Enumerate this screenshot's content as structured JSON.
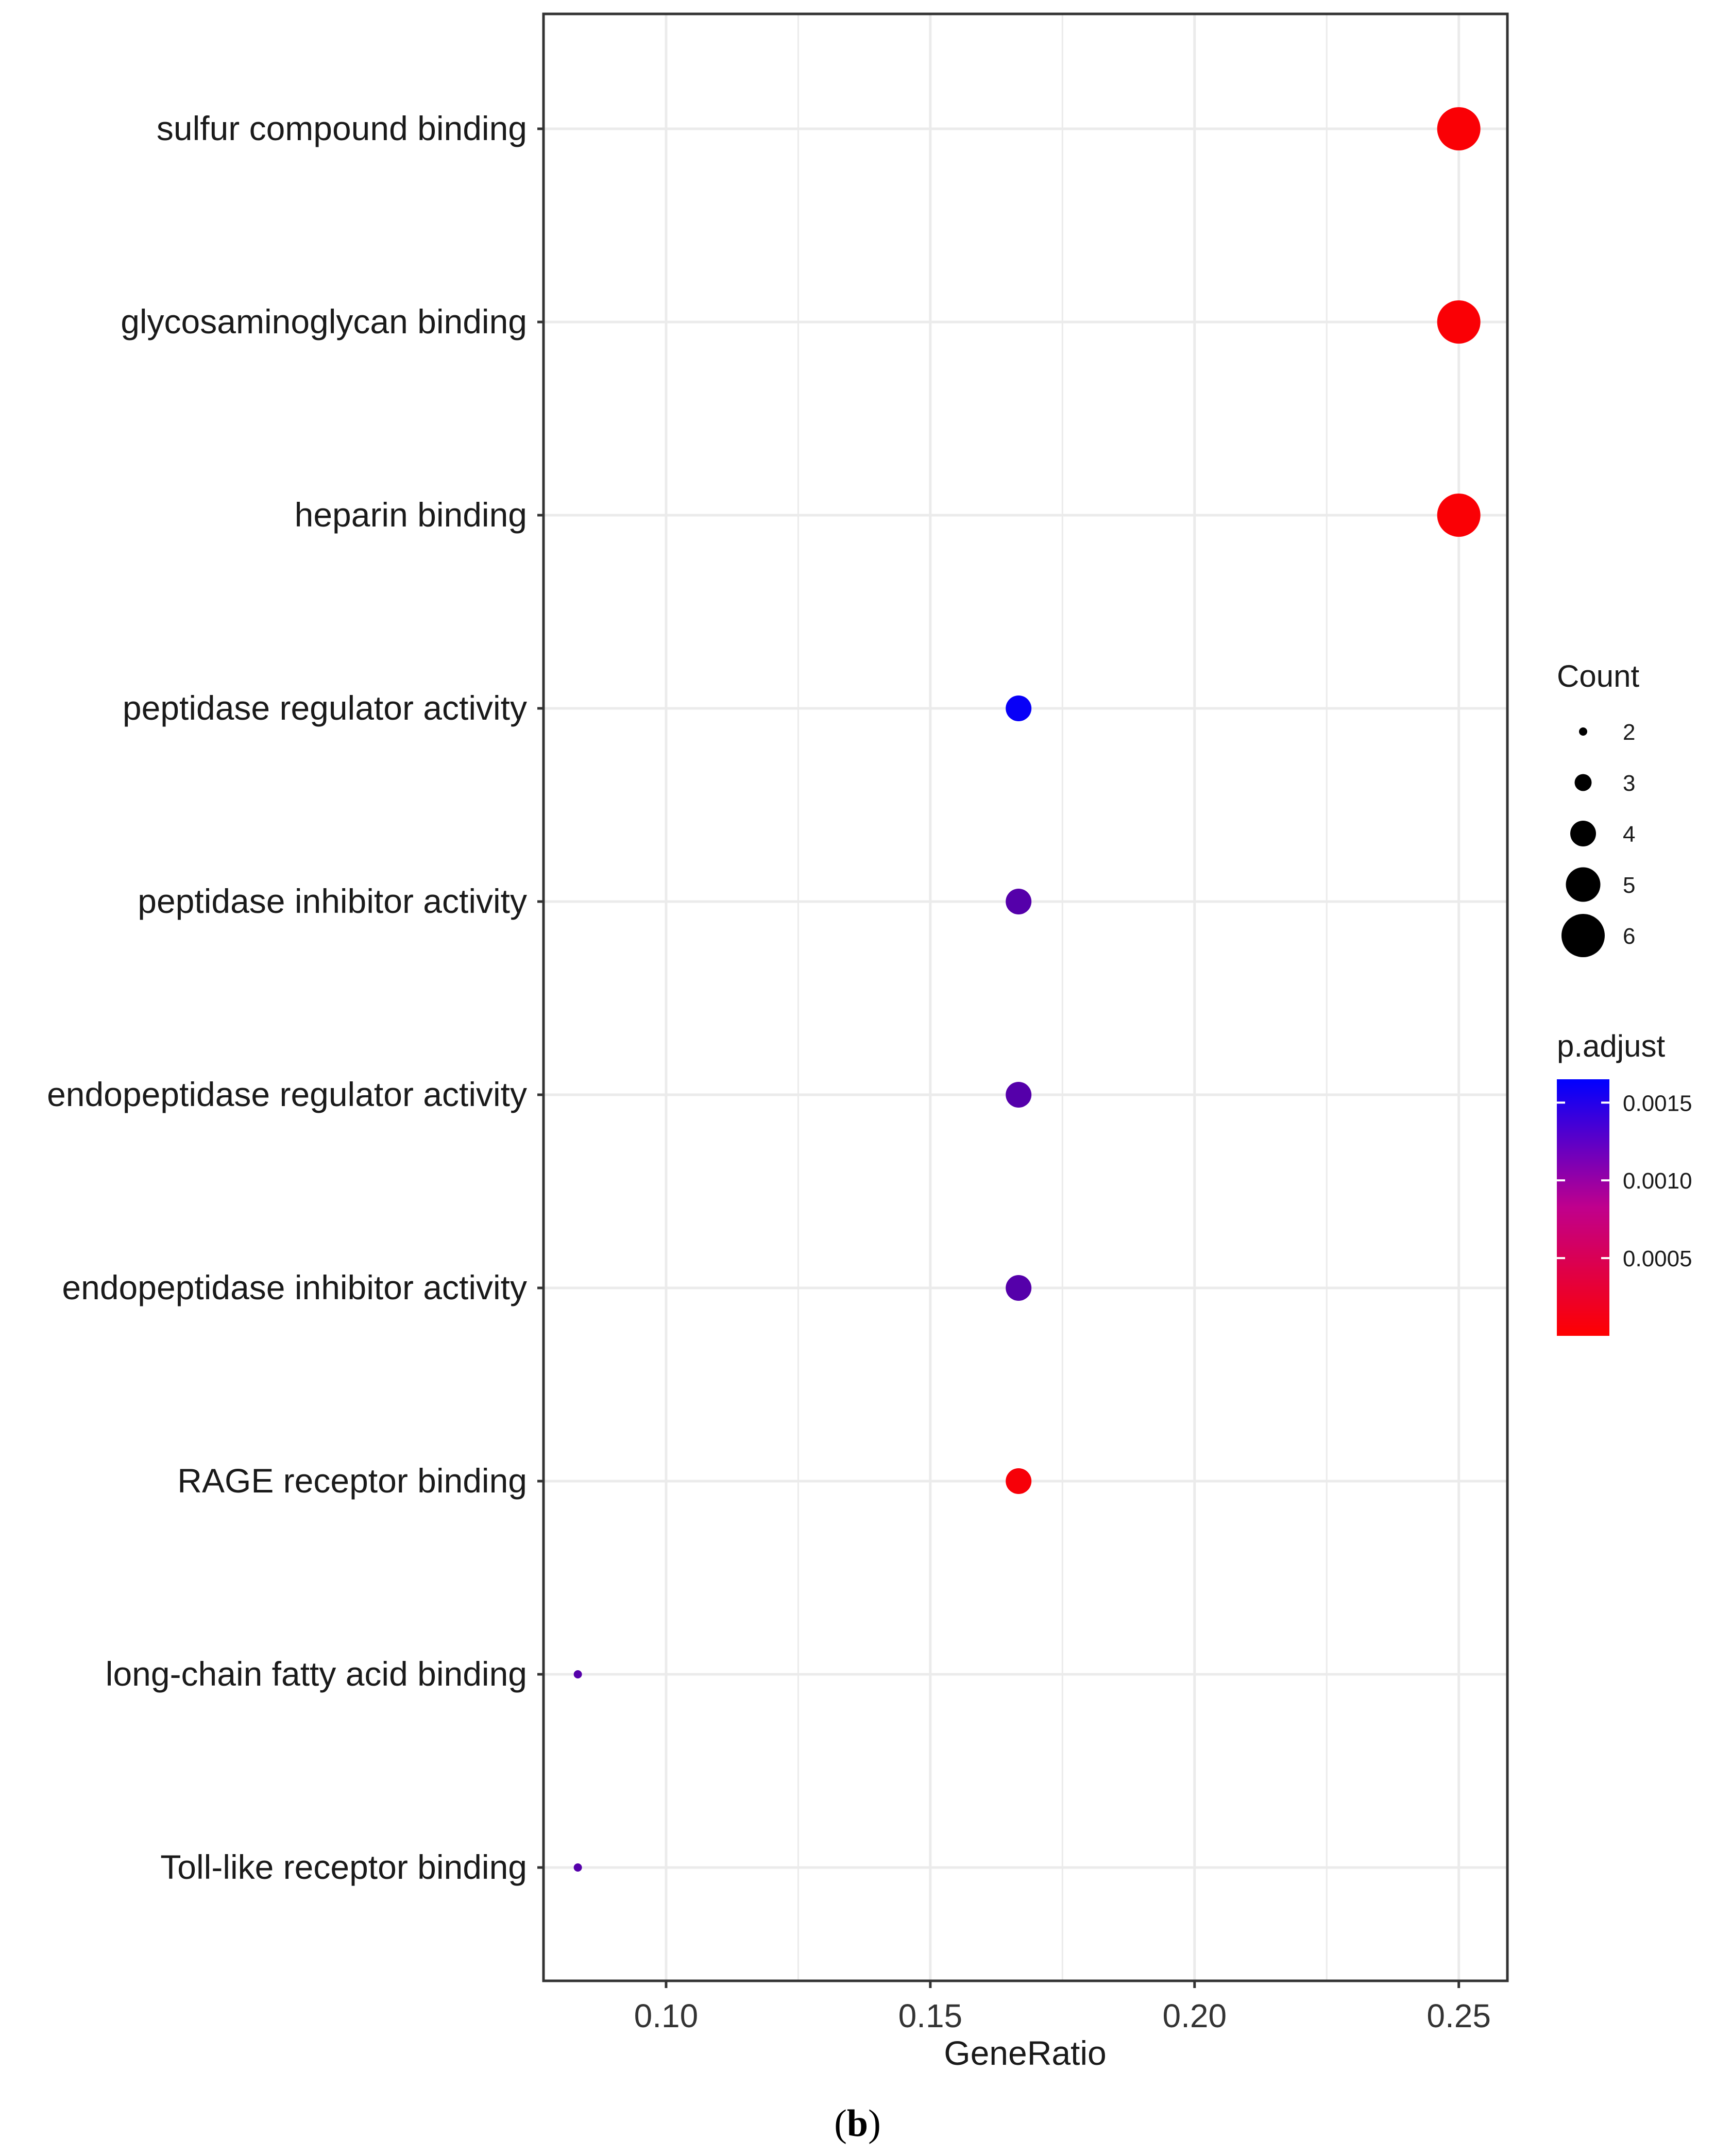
{
  "caption": {
    "open": "(",
    "letter": "b",
    "close": ")"
  },
  "chart_data": {
    "type": "scatter",
    "xlabel": "GeneRatio",
    "ylabel": "",
    "xlim": [
      0.077,
      0.259
    ],
    "xticks": [
      0.1,
      0.15,
      0.2,
      0.25
    ],
    "xtick_labels": [
      "0.10",
      "0.15",
      "0.20",
      "0.25"
    ],
    "grid": true,
    "categories": [
      "sulfur compound binding",
      "glycosaminoglycan binding",
      "heparin binding",
      "peptidase regulator activity",
      "peptidase inhibitor activity",
      "endopeptidase regulator activity",
      "endopeptidase inhibitor activity",
      "RAGE receptor binding",
      "long-chain fatty acid binding",
      "Toll-like receptor binding"
    ],
    "points": [
      {
        "term": "sulfur compound binding",
        "gene_ratio": 0.25,
        "count": 6,
        "p_adjust": 3e-05
      },
      {
        "term": "glycosaminoglycan binding",
        "gene_ratio": 0.25,
        "count": 6,
        "p_adjust": 3e-05
      },
      {
        "term": "heparin binding",
        "gene_ratio": 0.25,
        "count": 6,
        "p_adjust": 3e-05
      },
      {
        "term": "peptidase regulator activity",
        "gene_ratio": 0.1667,
        "count": 4,
        "p_adjust": 0.0016
      },
      {
        "term": "peptidase inhibitor activity",
        "gene_ratio": 0.1667,
        "count": 4,
        "p_adjust": 0.0011
      },
      {
        "term": "endopeptidase regulator activity",
        "gene_ratio": 0.1667,
        "count": 4,
        "p_adjust": 0.0011
      },
      {
        "term": "endopeptidase inhibitor activity",
        "gene_ratio": 0.1667,
        "count": 4,
        "p_adjust": 0.0011
      },
      {
        "term": "RAGE receptor binding",
        "gene_ratio": 0.1667,
        "count": 4,
        "p_adjust": 5e-05
      },
      {
        "term": "long-chain fatty acid binding",
        "gene_ratio": 0.0833,
        "count": 2,
        "p_adjust": 0.0011
      },
      {
        "term": "Toll-like receptor binding",
        "gene_ratio": 0.0833,
        "count": 2,
        "p_adjust": 0.0011
      }
    ],
    "size_legend": {
      "title": "Count",
      "values": [
        2,
        3,
        4,
        5,
        6
      ],
      "labels": [
        "2",
        "3",
        "4",
        "5",
        "6"
      ]
    },
    "color_legend": {
      "title": "p.adjust",
      "range": [
        0.0,
        0.00165
      ],
      "low_color": "#ff0000",
      "high_color": "#0000ff",
      "ticks": [
        0.0015,
        0.001,
        0.0005
      ],
      "tick_labels": [
        "0.0015",
        "0.0010",
        "0.0005"
      ]
    },
    "colors": {
      "panel_border": "#333333",
      "grid": "#ebebeb",
      "background": "#ffffff"
    }
  }
}
